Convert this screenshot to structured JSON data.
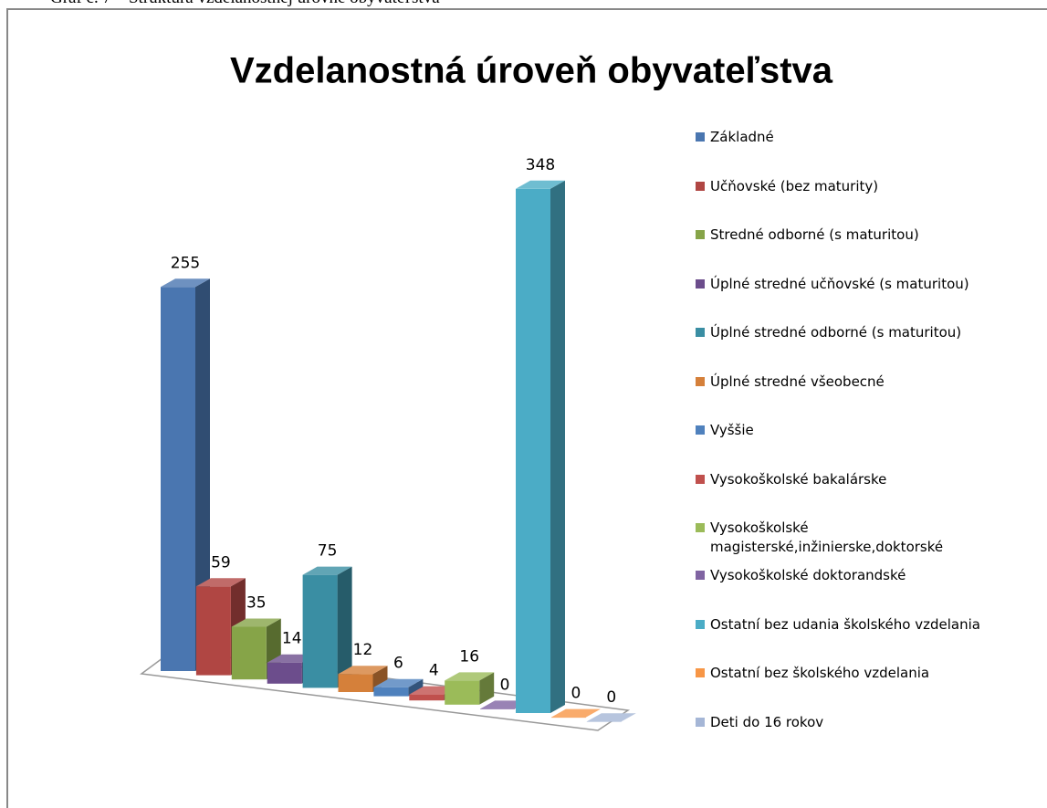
{
  "caption": "Graf č. 7 – Štruktúra vzdelanostnej úrovne obyvateľstva",
  "chart_data": {
    "type": "bar3d",
    "title": "Vzdelanostná úroveň obyvateľstva",
    "categories": [
      "Základné",
      "Učňovské (bez maturity)",
      "Stredné odborné (s maturitou)",
      "Úplné stredné učňovské (s maturitou)",
      "Úplné stredné odborné (s maturitou)",
      "Úplné stredné všeobecné",
      "Vyššie",
      "Vysokoškolské bakalárske",
      "Vysokoškolské\nmagisterské,inžinierske,doktorské",
      "Vysokoškolské doktorandské",
      "Ostatní bez udania školského vzdelania",
      "Ostatní bez školského vzdelania",
      "Deti do 16 rokov"
    ],
    "values": [
      255,
      59,
      35,
      14,
      75,
      12,
      6,
      4,
      16,
      0,
      348,
      0,
      0
    ],
    "colors": [
      "#4a76b0",
      "#b04643",
      "#86a448",
      "#6c4d8c",
      "#3a8ea3",
      "#d5803a",
      "#4f81bd",
      "#c0504d",
      "#9bbb59",
      "#8064a2",
      "#4bacc6",
      "#f79646",
      "#a5b6d6"
    ],
    "legend": "right"
  }
}
